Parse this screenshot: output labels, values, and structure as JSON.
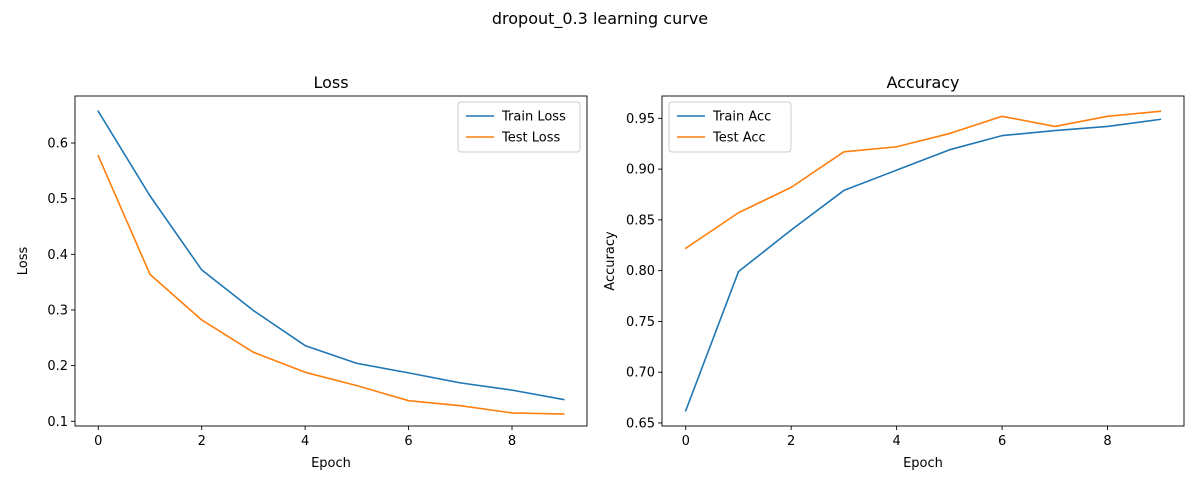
{
  "suptitle": "dropout_0.3 learning curve",
  "colors": {
    "train": "#1f77b4",
    "test": "#ff7f0e"
  },
  "chart_data": [
    {
      "type": "line",
      "title": "Loss",
      "xlabel": "Epoch",
      "ylabel": "Loss",
      "x": [
        0,
        1,
        2,
        3,
        4,
        5,
        6,
        7,
        8,
        9
      ],
      "xlim": [
        -0.45,
        9.45
      ],
      "ylim": [
        0.0915,
        0.6845
      ],
      "xticks": [
        0,
        2,
        4,
        6,
        8
      ],
      "yticks": [
        0.1,
        0.2,
        0.3,
        0.4,
        0.5,
        0.6
      ],
      "legend_position": "top-right",
      "series": [
        {
          "name": "Train Loss",
          "color": "#1f77b4",
          "values": [
            0.657,
            0.505,
            0.372,
            0.299,
            0.236,
            0.204,
            0.187,
            0.169,
            0.156,
            0.139
          ]
        },
        {
          "name": "Test Loss",
          "color": "#ff7f0e",
          "values": [
            0.577,
            0.364,
            0.282,
            0.224,
            0.188,
            0.164,
            0.137,
            0.128,
            0.115,
            0.113
          ]
        }
      ]
    },
    {
      "type": "line",
      "title": "Accuracy",
      "xlabel": "Epoch",
      "ylabel": "Accuracy",
      "x": [
        0,
        1,
        2,
        3,
        4,
        5,
        6,
        7,
        8,
        9
      ],
      "xlim": [
        -0.45,
        9.45
      ],
      "ylim": [
        0.647,
        0.972
      ],
      "xticks": [
        0,
        2,
        4,
        6,
        8
      ],
      "yticks": [
        0.65,
        0.7,
        0.75,
        0.8,
        0.85,
        0.9,
        0.95
      ],
      "legend_position": "top-left",
      "series": [
        {
          "name": "Train Acc",
          "color": "#1f77b4",
          "values": [
            0.662,
            0.799,
            0.84,
            0.879,
            0.899,
            0.919,
            0.933,
            0.938,
            0.942,
            0.949
          ]
        },
        {
          "name": "Test Acc",
          "color": "#ff7f0e",
          "values": [
            0.822,
            0.857,
            0.882,
            0.917,
            0.922,
            0.935,
            0.952,
            0.942,
            0.952,
            0.957
          ]
        }
      ]
    }
  ]
}
